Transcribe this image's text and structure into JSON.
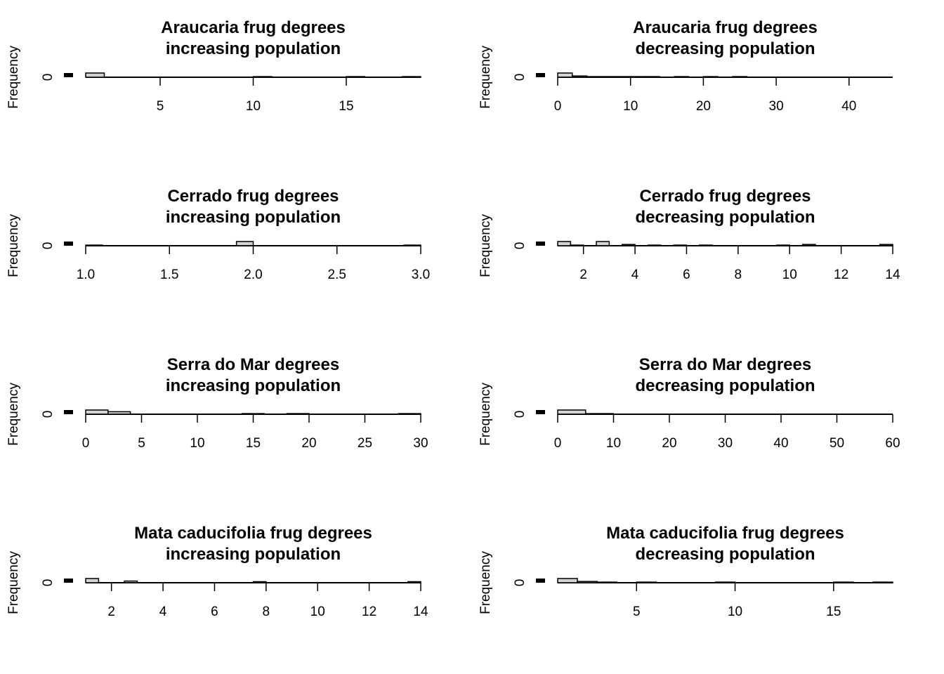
{
  "chart_data": [
    {
      "type": "bar",
      "title": [
        "Araucaria frug degrees",
        "increasing population"
      ],
      "ylabel": "Frequency",
      "yticks": [
        "0"
      ],
      "xlim": [
        1,
        19
      ],
      "xticks": [
        5,
        10,
        15
      ],
      "bins": [
        [
          1,
          2,
          2
        ],
        [
          10,
          11,
          0.3
        ],
        [
          15,
          16,
          0.3
        ],
        [
          18,
          19,
          0.3
        ]
      ]
    },
    {
      "type": "bar",
      "title": [
        "Araucaria frug degrees",
        "decreasing population"
      ],
      "ylabel": "Frequency",
      "yticks": [
        "0"
      ],
      "xlim": [
        0,
        46
      ],
      "xticks": [
        0,
        10,
        20,
        30,
        40
      ],
      "bins": [
        [
          0,
          2,
          2
        ],
        [
          2,
          4,
          0.6
        ],
        [
          4,
          6,
          0.3
        ],
        [
          6,
          8,
          0.3
        ],
        [
          8,
          10,
          0.3
        ],
        [
          10,
          12,
          0.3
        ],
        [
          12,
          14,
          0.3
        ],
        [
          16,
          18,
          0.3
        ],
        [
          20,
          22,
          0.3
        ],
        [
          24,
          26,
          0.3
        ]
      ]
    },
    {
      "type": "bar",
      "title": [
        "Cerrado frug degrees",
        "increasing population"
      ],
      "ylabel": "Frequency",
      "yticks": [
        "0"
      ],
      "xlim": [
        1,
        3
      ],
      "xticks": [
        "1.0",
        "1.5",
        "2.0",
        "2.5",
        "3.0"
      ],
      "bins": [
        [
          1,
          1.1,
          0.3
        ],
        [
          1.9,
          2.0,
          2
        ],
        [
          2.9,
          3.0,
          0.3
        ]
      ]
    },
    {
      "type": "bar",
      "title": [
        "Cerrado frug degrees",
        "decreasing population"
      ],
      "ylabel": "Frequency",
      "yticks": [
        "0"
      ],
      "xlim": [
        1,
        14
      ],
      "xticks": [
        2,
        4,
        6,
        8,
        10,
        12,
        14
      ],
      "bins": [
        [
          1,
          1.5,
          2
        ],
        [
          1.5,
          2,
          0.3
        ],
        [
          2.5,
          3,
          2
        ],
        [
          3.5,
          4,
          0.6
        ],
        [
          4.5,
          5,
          0.3
        ],
        [
          5.5,
          6,
          0.3
        ],
        [
          6.5,
          7,
          0.3
        ],
        [
          9.5,
          10,
          0.3
        ],
        [
          10.5,
          11,
          0.6
        ],
        [
          13.5,
          14,
          0.6
        ]
      ]
    },
    {
      "type": "bar",
      "title": [
        "Serra do Mar degrees",
        "increasing population"
      ],
      "ylabel": "Frequency",
      "yticks": [
        "0"
      ],
      "xlim": [
        0,
        30
      ],
      "xticks": [
        0,
        5,
        10,
        15,
        20,
        25,
        30
      ],
      "bins": [
        [
          0,
          2,
          2
        ],
        [
          2,
          4,
          1.2
        ],
        [
          14,
          16,
          0.3
        ],
        [
          18,
          20,
          0.3
        ],
        [
          28,
          30,
          0.3
        ]
      ]
    },
    {
      "type": "bar",
      "title": [
        "Serra do Mar degrees",
        "decreasing population"
      ],
      "ylabel": "Frequency",
      "yticks": [
        "0"
      ],
      "xlim": [
        0,
        60
      ],
      "xticks": [
        0,
        10,
        20,
        30,
        40,
        50,
        60
      ],
      "bins": [
        [
          0,
          5,
          2
        ],
        [
          5,
          10,
          0.3
        ]
      ]
    },
    {
      "type": "bar",
      "title": [
        "Mata caducifolia frug degrees",
        "increasing population"
      ],
      "ylabel": "Frequency",
      "yticks": [
        "0"
      ],
      "xlim": [
        1,
        14
      ],
      "xticks": [
        2,
        4,
        6,
        8,
        10,
        12,
        14
      ],
      "bins": [
        [
          1,
          1.5,
          2
        ],
        [
          2.5,
          3,
          0.8
        ],
        [
          7.5,
          8,
          0.5
        ],
        [
          13.5,
          14,
          0.5
        ]
      ]
    },
    {
      "type": "bar",
      "title": [
        "Mata caducifolia frug degrees",
        "decreasing population"
      ],
      "ylabel": "Frequency",
      "yticks": [
        "0"
      ],
      "xlim": [
        1,
        18
      ],
      "xticks": [
        5,
        10,
        15
      ],
      "bins": [
        [
          1,
          2,
          2
        ],
        [
          2,
          3,
          0.6
        ],
        [
          3,
          4,
          0.3
        ],
        [
          5,
          6,
          0.3
        ],
        [
          9,
          10,
          0.3
        ],
        [
          15,
          16,
          0.3
        ],
        [
          17,
          18,
          0.3
        ]
      ]
    }
  ]
}
